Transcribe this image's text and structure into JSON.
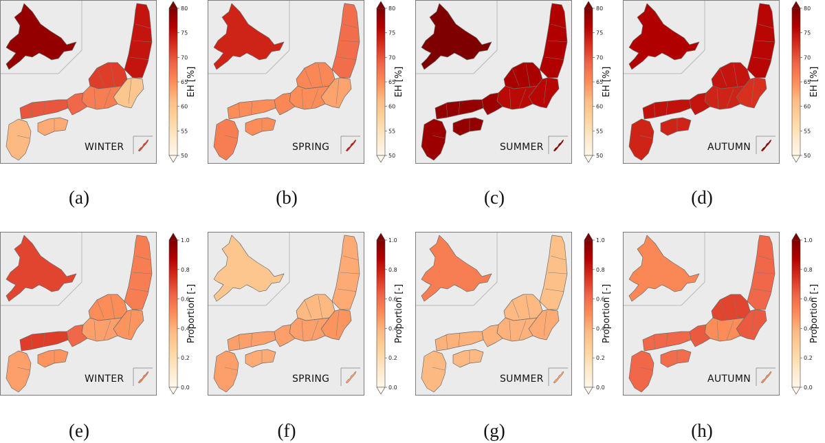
{
  "colormap": {
    "name": "OrRd",
    "stops": [
      "#fff7ec",
      "#fee8c8",
      "#fdd49e",
      "#fdbb84",
      "#fc8d59",
      "#ef6548",
      "#d7301f",
      "#b30000",
      "#7f0000"
    ]
  },
  "rows": [
    {
      "colorbar": {
        "label": "EH [%]",
        "min": 50,
        "max": 80,
        "ticks": [
          "50",
          "55",
          "60",
          "65",
          "70",
          "75",
          "80"
        ]
      },
      "panels": [
        {
          "caption": "(a)",
          "season": "WINTER",
          "levels": {
            "hokkaido": 0.95,
            "tohoku": 0.82,
            "north": 0.72,
            "kanto": 0.32,
            "chubu": 0.55,
            "kansai": 0.62,
            "chugoku": 0.66,
            "shikoku": 0.42,
            "kyushu": 0.38,
            "okinawa": 0.7
          }
        },
        {
          "caption": "(b)",
          "season": "SPRING",
          "levels": {
            "hokkaido": 0.78,
            "tohoku": 0.6,
            "north": 0.52,
            "kanto": 0.44,
            "chubu": 0.5,
            "kansai": 0.52,
            "chugoku": 0.5,
            "shikoku": 0.5,
            "kyushu": 0.55,
            "okinawa": 0.8
          }
        },
        {
          "caption": "(c)",
          "season": "SUMMER",
          "levels": {
            "hokkaido": 1.0,
            "tohoku": 0.88,
            "north": 0.9,
            "kanto": 0.86,
            "chubu": 0.85,
            "kansai": 0.93,
            "chugoku": 0.95,
            "shikoku": 0.95,
            "kyushu": 0.93,
            "okinawa": 0.95
          }
        },
        {
          "caption": "(d)",
          "season": "AUTUMN",
          "levels": {
            "hokkaido": 0.88,
            "tohoku": 0.86,
            "north": 0.82,
            "kanto": 0.75,
            "chubu": 0.78,
            "kansai": 0.82,
            "chugoku": 0.83,
            "shikoku": 0.78,
            "kyushu": 0.78,
            "okinawa": 0.93
          }
        }
      ]
    },
    {
      "colorbar": {
        "label": "Proportion [-]",
        "min": 0.0,
        "max": 1.0,
        "ticks": [
          "0.0",
          "0.2",
          "0.4",
          "0.6",
          "0.8",
          "1.0"
        ]
      },
      "panels": [
        {
          "caption": "(e)",
          "season": "WINTER",
          "levels": {
            "hokkaido": 0.7,
            "tohoku": 0.55,
            "north": 0.5,
            "kanto": 0.48,
            "chubu": 0.45,
            "kansai": 0.62,
            "chugoku": 0.72,
            "shikoku": 0.48,
            "kyushu": 0.45,
            "okinawa": 0.55
          }
        },
        {
          "caption": "(f)",
          "season": "SPRING",
          "levels": {
            "hokkaido": 0.32,
            "tohoku": 0.42,
            "north": 0.38,
            "kanto": 0.48,
            "chubu": 0.45,
            "kansai": 0.45,
            "chugoku": 0.45,
            "shikoku": 0.42,
            "kyushu": 0.45,
            "okinawa": 0.45
          }
        },
        {
          "caption": "(g)",
          "season": "SUMMER",
          "levels": {
            "hokkaido": 0.55,
            "tohoku": 0.35,
            "north": 0.38,
            "kanto": 0.42,
            "chubu": 0.4,
            "kansai": 0.4,
            "chugoku": 0.4,
            "shikoku": 0.38,
            "kyushu": 0.38,
            "okinawa": 0.45
          }
        },
        {
          "caption": "(h)",
          "season": "AUTUMN",
          "levels": {
            "hokkaido": 0.52,
            "tohoku": 0.62,
            "north": 0.7,
            "kanto": 0.65,
            "chubu": 0.5,
            "kansai": 0.65,
            "chugoku": 0.62,
            "shikoku": 0.6,
            "kyushu": 0.62,
            "okinawa": 0.5
          }
        }
      ]
    }
  ]
}
